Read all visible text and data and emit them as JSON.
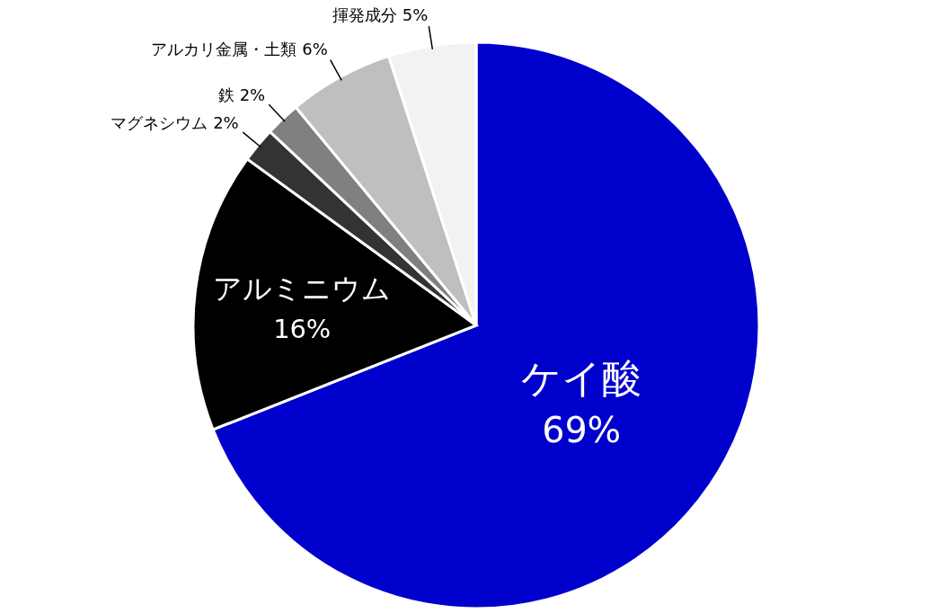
{
  "chart_data": {
    "type": "pie",
    "categories": [
      "ケイ酸",
      "アルミニウム",
      "マグネシウム",
      "鉄",
      "アルカリ金属・土類",
      "揮発成分"
    ],
    "values": [
      69,
      16,
      2,
      2,
      6,
      5
    ],
    "colors": [
      "#0000cc",
      "#000000",
      "#333333",
      "#808080",
      "#bfbfbf",
      "#f2f2f2"
    ],
    "value_labels": [
      "69%",
      "16%",
      "2%",
      "2%",
      "6%",
      "5%"
    ]
  }
}
